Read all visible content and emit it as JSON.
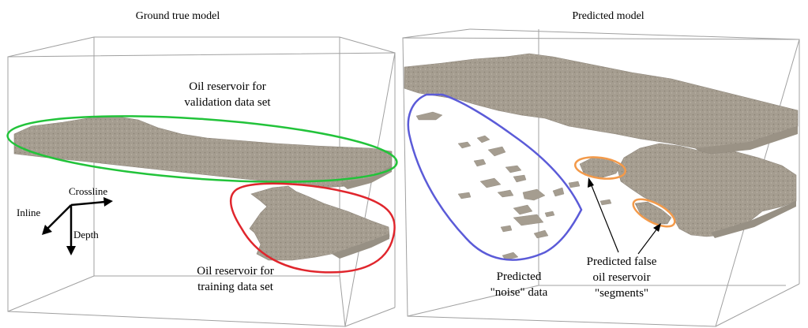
{
  "left_panel": {
    "title": "Ground true model",
    "validation_label": [
      "Oil reservoir for",
      "validation data set"
    ],
    "training_label": [
      "Oil reservoir for",
      "training data set"
    ],
    "axes": {
      "crossline": "Crossline",
      "inline": "Inline",
      "depth": "Depth"
    }
  },
  "right_panel": {
    "title": "Predicted model",
    "noise_label": [
      "Predicted",
      "\"noise\" data"
    ],
    "false_label": [
      "Predicted false",
      "oil reservoir",
      "\"segments\""
    ]
  },
  "colors": {
    "validation_outline": "#22c33a",
    "training_outline": "#e0262d",
    "noise_outline": "#5b5bd8",
    "false_segment_outline": "#f39a4a",
    "reservoir_fill": "#a59d90",
    "box_line": "#a0a0a0"
  }
}
